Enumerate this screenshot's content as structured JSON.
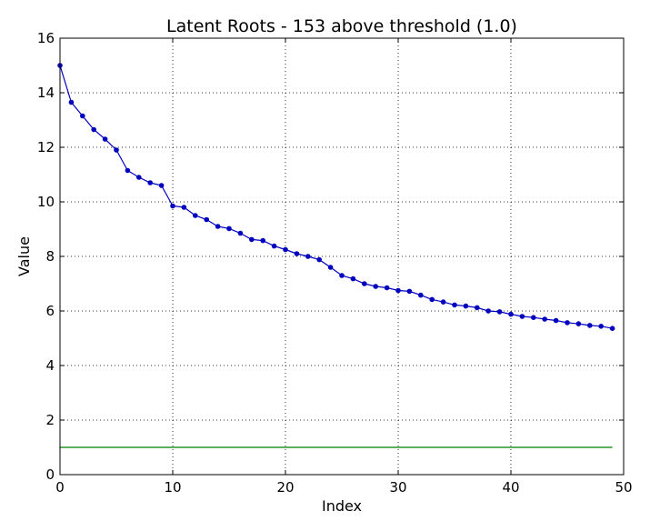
{
  "chart_data": {
    "type": "line",
    "title": "Latent Roots - 153 above threshold (1.0)",
    "xlabel": "Index",
    "ylabel": "Value",
    "xlim": [
      0,
      50
    ],
    "ylim": [
      0,
      16
    ],
    "xticks": [
      "0",
      "10",
      "20",
      "30",
      "40",
      "50"
    ],
    "yticks": [
      "0",
      "2",
      "4",
      "6",
      "8",
      "10",
      "12",
      "14",
      "16"
    ],
    "grid": true,
    "series": [
      {
        "color": "#0000bf",
        "marker": "circle",
        "x": [
          0,
          1,
          2,
          3,
          4,
          5,
          6,
          7,
          8,
          9,
          10,
          11,
          12,
          13,
          14,
          15,
          16,
          17,
          18,
          19,
          20,
          21,
          22,
          23,
          24,
          25,
          26,
          27,
          28,
          29,
          30,
          31,
          32,
          33,
          34,
          35,
          36,
          37,
          38,
          39,
          40,
          41,
          42,
          43,
          44,
          45,
          46,
          47,
          48,
          49
        ],
        "values": [
          15.0,
          13.65,
          13.15,
          12.65,
          12.3,
          11.9,
          11.15,
          10.9,
          10.7,
          10.6,
          9.85,
          9.8,
          9.5,
          9.35,
          9.1,
          9.02,
          8.85,
          8.62,
          8.58,
          8.38,
          8.25,
          8.1,
          8.0,
          7.88,
          7.6,
          7.3,
          7.18,
          7.0,
          6.9,
          6.85,
          6.75,
          6.72,
          6.58,
          6.42,
          6.33,
          6.22,
          6.18,
          6.12,
          6.0,
          5.97,
          5.88,
          5.8,
          5.76,
          5.7,
          5.65,
          5.57,
          5.53,
          5.47,
          5.44,
          5.36
        ]
      },
      {
        "color": "#008000",
        "marker": "none",
        "x": [
          0,
          49
        ],
        "values": [
          1.0,
          1.0
        ]
      }
    ]
  }
}
